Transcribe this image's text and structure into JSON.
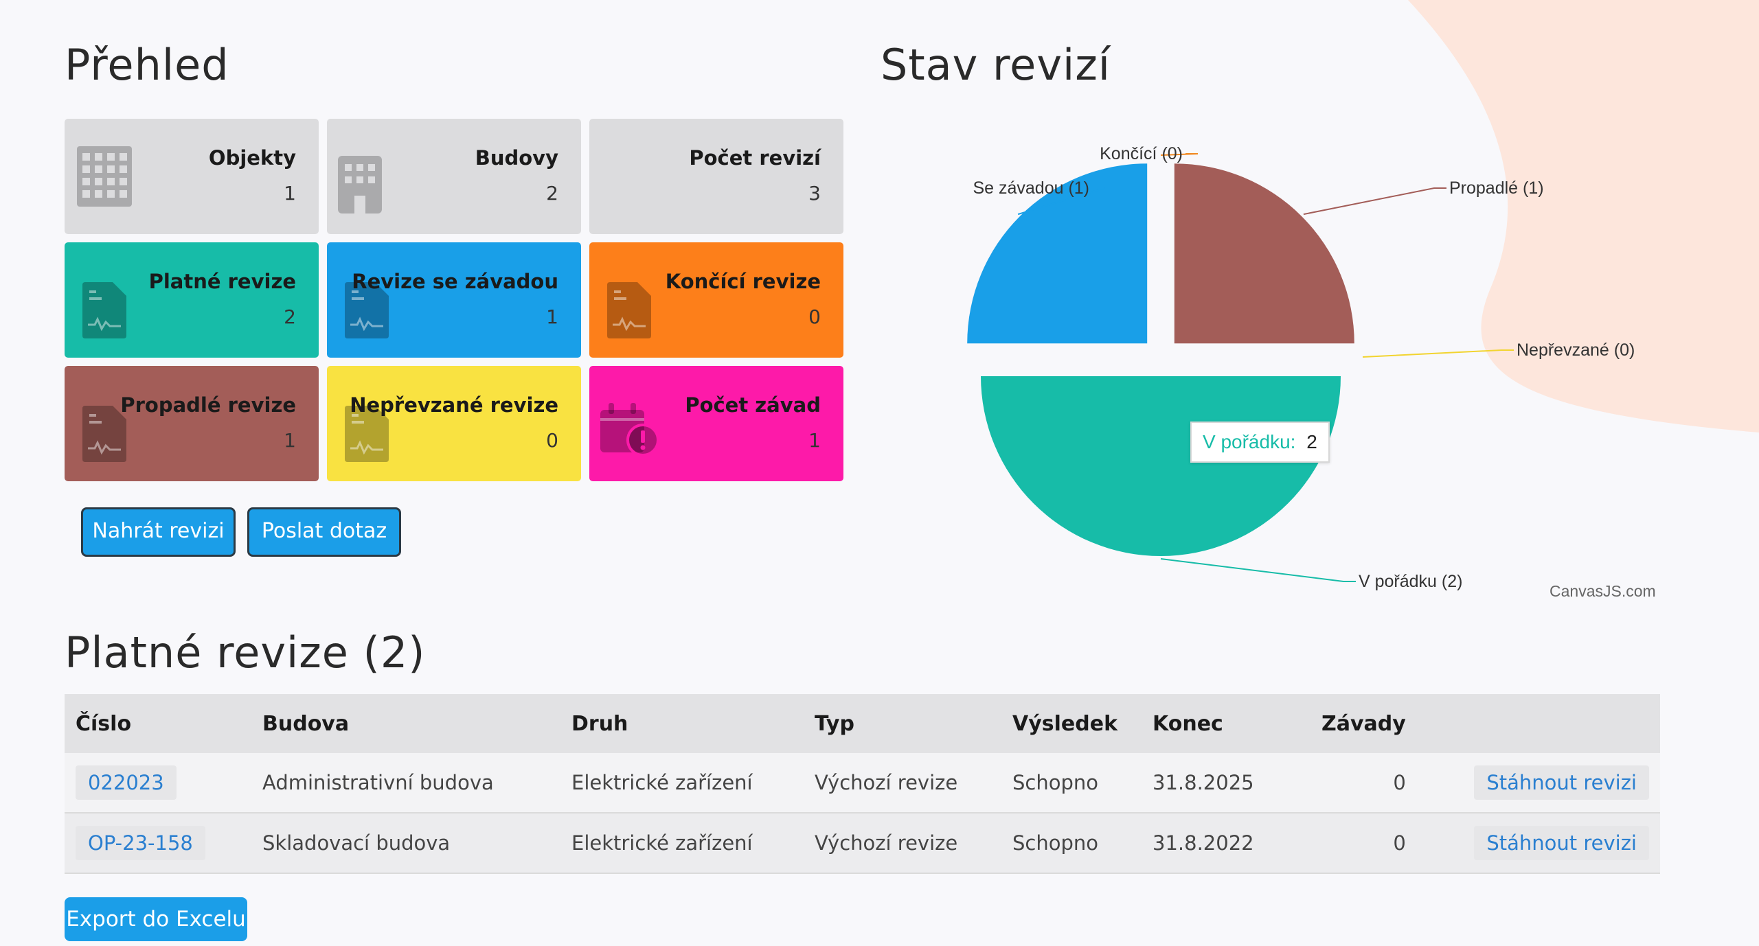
{
  "overview": {
    "title": "Přehled",
    "tiles": [
      {
        "label": "Objekty",
        "value": "1",
        "color": "#dcdcde",
        "icon": "building-icon"
      },
      {
        "label": "Budovy",
        "value": "2",
        "color": "#dcdcde",
        "icon": "building-small-icon"
      },
      {
        "label": "Počet revizí",
        "value": "3",
        "color": "#dcdcde",
        "icon": ""
      },
      {
        "label": "Platné revize",
        "value": "2",
        "color": "#17bca8",
        "icon": "document-chart-icon"
      },
      {
        "label": "Revize se závadou",
        "value": "1",
        "color": "#199fe8",
        "icon": "document-chart-icon"
      },
      {
        "label": "Končící revize",
        "value": "0",
        "color": "#fd7f1a",
        "icon": "document-chart-icon"
      },
      {
        "label": "Propadlé revize",
        "value": "1",
        "color": "#a35d58",
        "icon": "document-chart-icon"
      },
      {
        "label": "Nepřevzané revize",
        "value": "0",
        "color": "#f9e241",
        "icon": "document-chart-icon"
      },
      {
        "label": "Počet závad",
        "value": "1",
        "color": "#fd1aa9",
        "icon": "calendar-alert-icon"
      }
    ],
    "buttons": {
      "upload": "Nahrát revizi",
      "ask": "Poslat dotaz"
    }
  },
  "status": {
    "title": "Stav revizí",
    "credit": "CanvasJS.com",
    "tooltip": {
      "label": "V pořádku:",
      "value": "2"
    }
  },
  "chart_data": {
    "type": "pie",
    "title": "Stav revizí",
    "slices": [
      {
        "label": "Propadlé (1)",
        "name": "Propadlé",
        "value": 1,
        "color": "#a35d58"
      },
      {
        "label": "Nepřevzané (0)",
        "name": "Nepřevzané",
        "value": 0,
        "color": "#f2d430"
      },
      {
        "label": "V pořádku (2)",
        "name": "V pořádku",
        "value": 2,
        "color": "#17bca8"
      },
      {
        "label": "Se závadou (1)",
        "name": "Se závadou",
        "value": 1,
        "color": "#199fe8"
      },
      {
        "label": "Končící (0)",
        "name": "Končící",
        "value": 0,
        "color": "#f08a24"
      }
    ]
  },
  "valid": {
    "title": "Platné revize (2)",
    "columns": [
      "Číslo",
      "Budova",
      "Druh",
      "Typ",
      "Výsledek",
      "Konec",
      "Závady",
      ""
    ],
    "rows": [
      {
        "cislo": "022023",
        "budova": "Administrativní budova",
        "druh": "Elektrické zařízení",
        "typ": "Výchozí revize",
        "vysledek": "Schopno",
        "konec": "31.8.2025",
        "zavady": "0",
        "action": "Stáhnout revizi"
      },
      {
        "cislo": "OP-23-158",
        "budova": "Skladovací budova",
        "druh": "Elektrické zařízení",
        "typ": "Výchozí revize",
        "vysledek": "Schopno",
        "konec": "31.8.2022",
        "zavady": "0",
        "action": "Stáhnout revizi"
      }
    ],
    "export": "Export do Excelu"
  }
}
